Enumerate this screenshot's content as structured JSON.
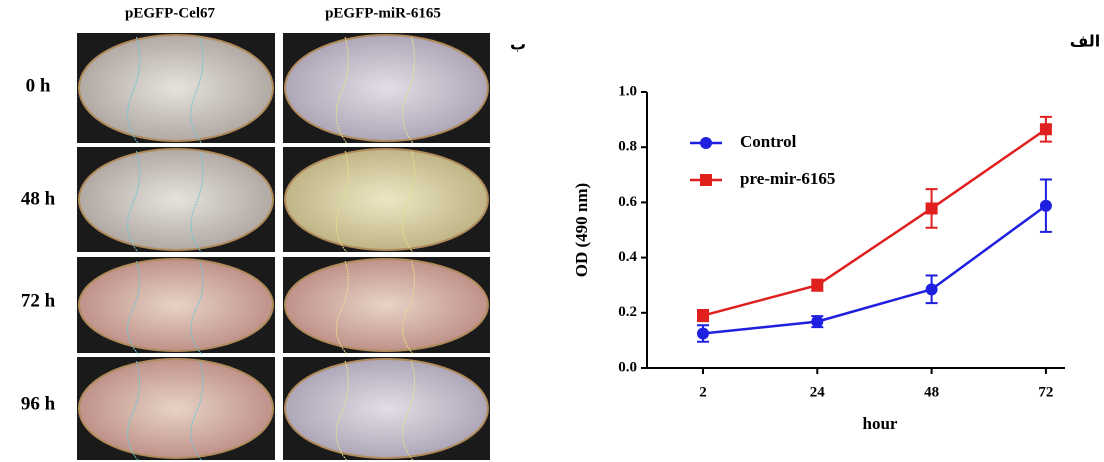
{
  "panel_labels": {
    "left": "ب",
    "right": "الف"
  },
  "micrographs": {
    "columns": [
      "pEGFP-Cel67",
      "pEGFP-miR-6165"
    ],
    "rows": [
      "0 h",
      "48 h",
      "72 h",
      "96 h"
    ]
  },
  "chart_data": {
    "type": "line",
    "x_label": "hour",
    "y_label": "OD (490 nm)",
    "categories": [
      "2",
      "24",
      "48",
      "72"
    ],
    "series": [
      {
        "name": "Control",
        "color": "#1f1fe0",
        "marker": "circle",
        "values": [
          0.125,
          0.168,
          0.285,
          0.588
        ],
        "errors": [
          0.03,
          0.02,
          0.05,
          0.095
        ]
      },
      {
        "name": "pre-mir-6165",
        "color": "#e01f1f",
        "marker": "square",
        "values": [
          0.19,
          0.3,
          0.578,
          0.865
        ],
        "errors": [
          0.02,
          0.02,
          0.07,
          0.045
        ]
      }
    ],
    "ylim": [
      0,
      1.0
    ],
    "yticks": [
      {
        "value": 0,
        "label": "0.0"
      },
      0.2,
      0.4,
      0.6,
      0.8,
      {
        "value": 1.0,
        "label": "1.0"
      }
    ],
    "legend": "upper left"
  }
}
